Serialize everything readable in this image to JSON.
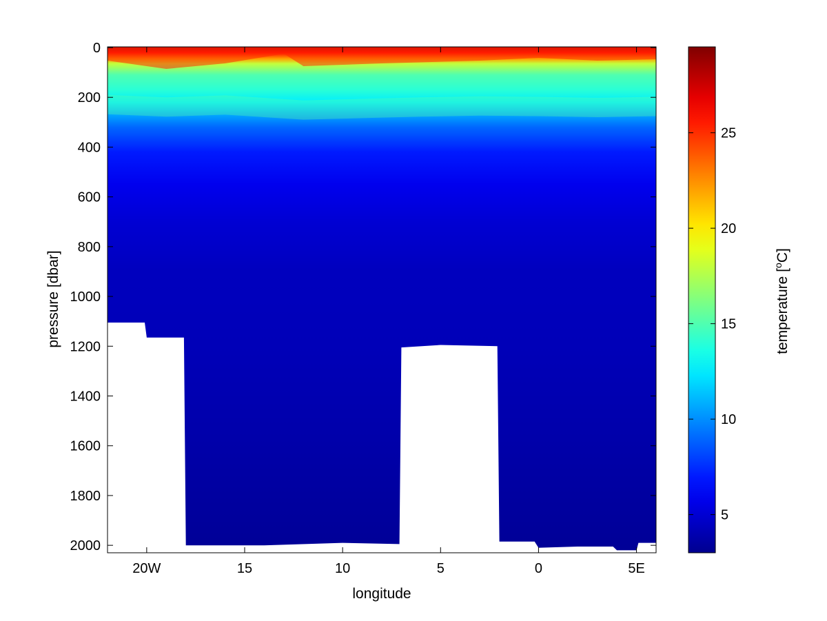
{
  "chart_data": {
    "type": "heatmap",
    "title": "",
    "xlabel": "longitude",
    "ylabel": "pressure [dbar]",
    "colorbar_label": "temperature [",
    "colorbar_label_sup": "o",
    "colorbar_label_tail": "C]",
    "x_range": [
      -22,
      6
    ],
    "y_range": [
      0,
      2030
    ],
    "y_reversed": true,
    "x_ticks": [
      {
        "value": -20,
        "label": "20W"
      },
      {
        "value": -15,
        "label": "15"
      },
      {
        "value": -10,
        "label": "10"
      },
      {
        "value": -5,
        "label": "5"
      },
      {
        "value": 0,
        "label": "0"
      },
      {
        "value": 5,
        "label": "5E"
      }
    ],
    "y_ticks": [
      {
        "value": 0,
        "label": "0"
      },
      {
        "value": 200,
        "label": "200"
      },
      {
        "value": 400,
        "label": "400"
      },
      {
        "value": 600,
        "label": "600"
      },
      {
        "value": 800,
        "label": "800"
      },
      {
        "value": 1000,
        "label": "1000"
      },
      {
        "value": 1200,
        "label": "1200"
      },
      {
        "value": 1400,
        "label": "1400"
      },
      {
        "value": 1600,
        "label": "1600"
      },
      {
        "value": 1800,
        "label": "1800"
      },
      {
        "value": 2000,
        "label": "2000"
      }
    ],
    "colorbar_range": [
      3,
      29.5
    ],
    "colorbar_ticks": [
      {
        "value": 5,
        "label": "5"
      },
      {
        "value": 10,
        "label": "10"
      },
      {
        "value": 15,
        "label": "15"
      },
      {
        "value": 20,
        "label": "20"
      },
      {
        "value": 25,
        "label": "25"
      }
    ],
    "colormap": "jet",
    "colormap_stops": [
      "#00008f",
      "#0000ff",
      "#00ffff",
      "#ffff00",
      "#ff0000",
      "#800000"
    ],
    "temperature_profile": [
      {
        "pressure": 0,
        "temperature": 28
      },
      {
        "pressure": 20,
        "temperature": 26
      },
      {
        "pressure": 45,
        "temperature": 22
      },
      {
        "pressure": 65,
        "temperature": 18
      },
      {
        "pressure": 110,
        "temperature": 15
      },
      {
        "pressure": 170,
        "temperature": 14
      },
      {
        "pressure": 220,
        "temperature": 12.5
      },
      {
        "pressure": 260,
        "temperature": 11
      },
      {
        "pressure": 320,
        "temperature": 9
      },
      {
        "pressure": 420,
        "temperature": 7
      },
      {
        "pressure": 550,
        "temperature": 5.8
      },
      {
        "pressure": 700,
        "temperature": 5
      },
      {
        "pressure": 900,
        "temperature": 4.4
      },
      {
        "pressure": 1200,
        "temperature": 4.2
      },
      {
        "pressure": 1500,
        "temperature": 3.9
      },
      {
        "pressure": 1800,
        "temperature": 3.5
      },
      {
        "pressure": 2030,
        "temperature": 3.2
      }
    ],
    "bottom_mask": [
      {
        "lon": -22,
        "depth": 1105
      },
      {
        "lon": -20.1,
        "depth": 1105
      },
      {
        "lon": -20.0,
        "depth": 1165
      },
      {
        "lon": -18.1,
        "depth": 1165
      },
      {
        "lon": -18.0,
        "depth": 2000
      },
      {
        "lon": -14,
        "depth": 2000
      },
      {
        "lon": -10,
        "depth": 1990
      },
      {
        "lon": -7.1,
        "depth": 1995
      },
      {
        "lon": -7.0,
        "depth": 1205
      },
      {
        "lon": -5,
        "depth": 1195
      },
      {
        "lon": -2.1,
        "depth": 1200
      },
      {
        "lon": -2.0,
        "depth": 1985
      },
      {
        "lon": -0.2,
        "depth": 1985
      },
      {
        "lon": 0.0,
        "depth": 2010
      },
      {
        "lon": 2,
        "depth": 2005
      },
      {
        "lon": 3.8,
        "depth": 2005
      },
      {
        "lon": 4.0,
        "depth": 2020
      },
      {
        "lon": 5.0,
        "depth": 2020
      },
      {
        "lon": 5.1,
        "depth": 1990
      },
      {
        "lon": 6,
        "depth": 1990
      }
    ]
  }
}
